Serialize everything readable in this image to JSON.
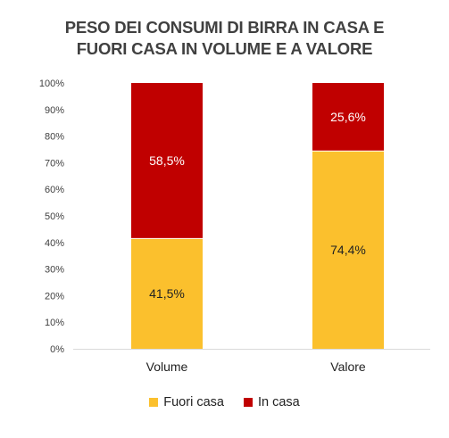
{
  "chart_data": {
    "type": "bar",
    "stacked": true,
    "percent_stacked": true,
    "title_lines": [
      "PESO DEI CONSUMI DI BIRRA IN CASA E",
      "FUORI CASA IN VOLUME E A VALORE"
    ],
    "categories": [
      "Volume",
      "Valore"
    ],
    "series": [
      {
        "name": "Fuori casa",
        "values": [
          41.5,
          74.4
        ],
        "labels": [
          "41,5%",
          "74,4%"
        ],
        "color": "#FBC02D"
      },
      {
        "name": "In casa",
        "values": [
          58.5,
          25.6
        ],
        "labels": [
          "58,5%",
          "25,6%"
        ],
        "color": "#C00000"
      }
    ],
    "y_ticks": [
      "0%",
      "10%",
      "20%",
      "30%",
      "40%",
      "50%",
      "60%",
      "70%",
      "80%",
      "90%",
      "100%"
    ],
    "ylim": [
      0,
      100
    ],
    "grid": false,
    "legend_position": "bottom"
  }
}
